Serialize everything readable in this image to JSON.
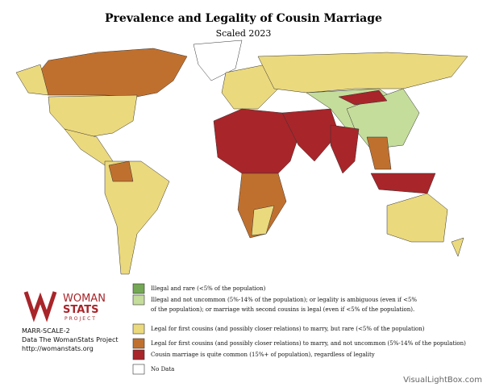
{
  "header": {
    "title": "Prevalence and Legality of Cousin Marriage",
    "subtitle": "Scaled 2023"
  },
  "legend": [
    {
      "color": "#74a854",
      "lines": [
        "Illegal and rare (<5% of the population)"
      ]
    },
    {
      "color": "#c5dd9b",
      "lines": [
        "Illegal and not uncommon (5%-14% of the population); or legality is ambiguous (even if <5%",
        "of the population); or marriage with second cousins is legal (even if <5% of the population)."
      ]
    },
    {
      "color": "#ebd97d",
      "lines": [
        "Legal for first cousins (and possibly closer relations) to marry, but rare (<5% of the population)"
      ]
    },
    {
      "color": "#c0702e",
      "lines": [
        "Legal for first cousins (and possibly closer relations) to marry, and not uncommon (5%-14% of the population)"
      ]
    },
    {
      "color": "#a8252a",
      "lines": [
        "Cousin marriage is quite common (15%+ of population), regardless of legality"
      ]
    },
    {
      "color": "#ffffff",
      "lines": [
        "No Data"
      ]
    }
  ],
  "logo": {
    "line1": "WOMAN",
    "line2": "STATS",
    "line3": "PROJECT"
  },
  "footer": {
    "code": "MARR-SCALE-2",
    "source": "Data The WomanStats Project",
    "url": "http://womanstats.org"
  },
  "watermark": "VisualLightBox.com"
}
